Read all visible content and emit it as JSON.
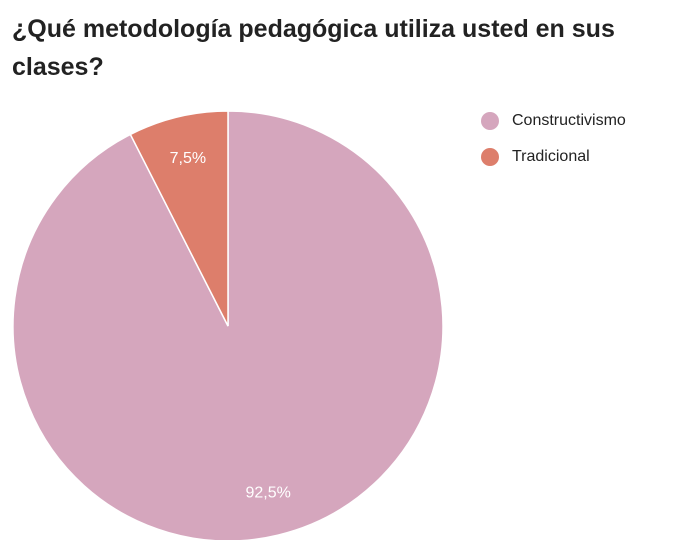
{
  "chart_data": {
    "type": "pie",
    "title": "¿Qué metodología pedagógica utiliza usted en sus clases?",
    "categories": [
      "Constructivismo",
      "Tradicional"
    ],
    "values": [
      92.5,
      7.5
    ],
    "value_labels": [
      "92,5%",
      "7,5%"
    ],
    "colors": [
      "#d5a6bd",
      "#dd7e6b"
    ]
  }
}
